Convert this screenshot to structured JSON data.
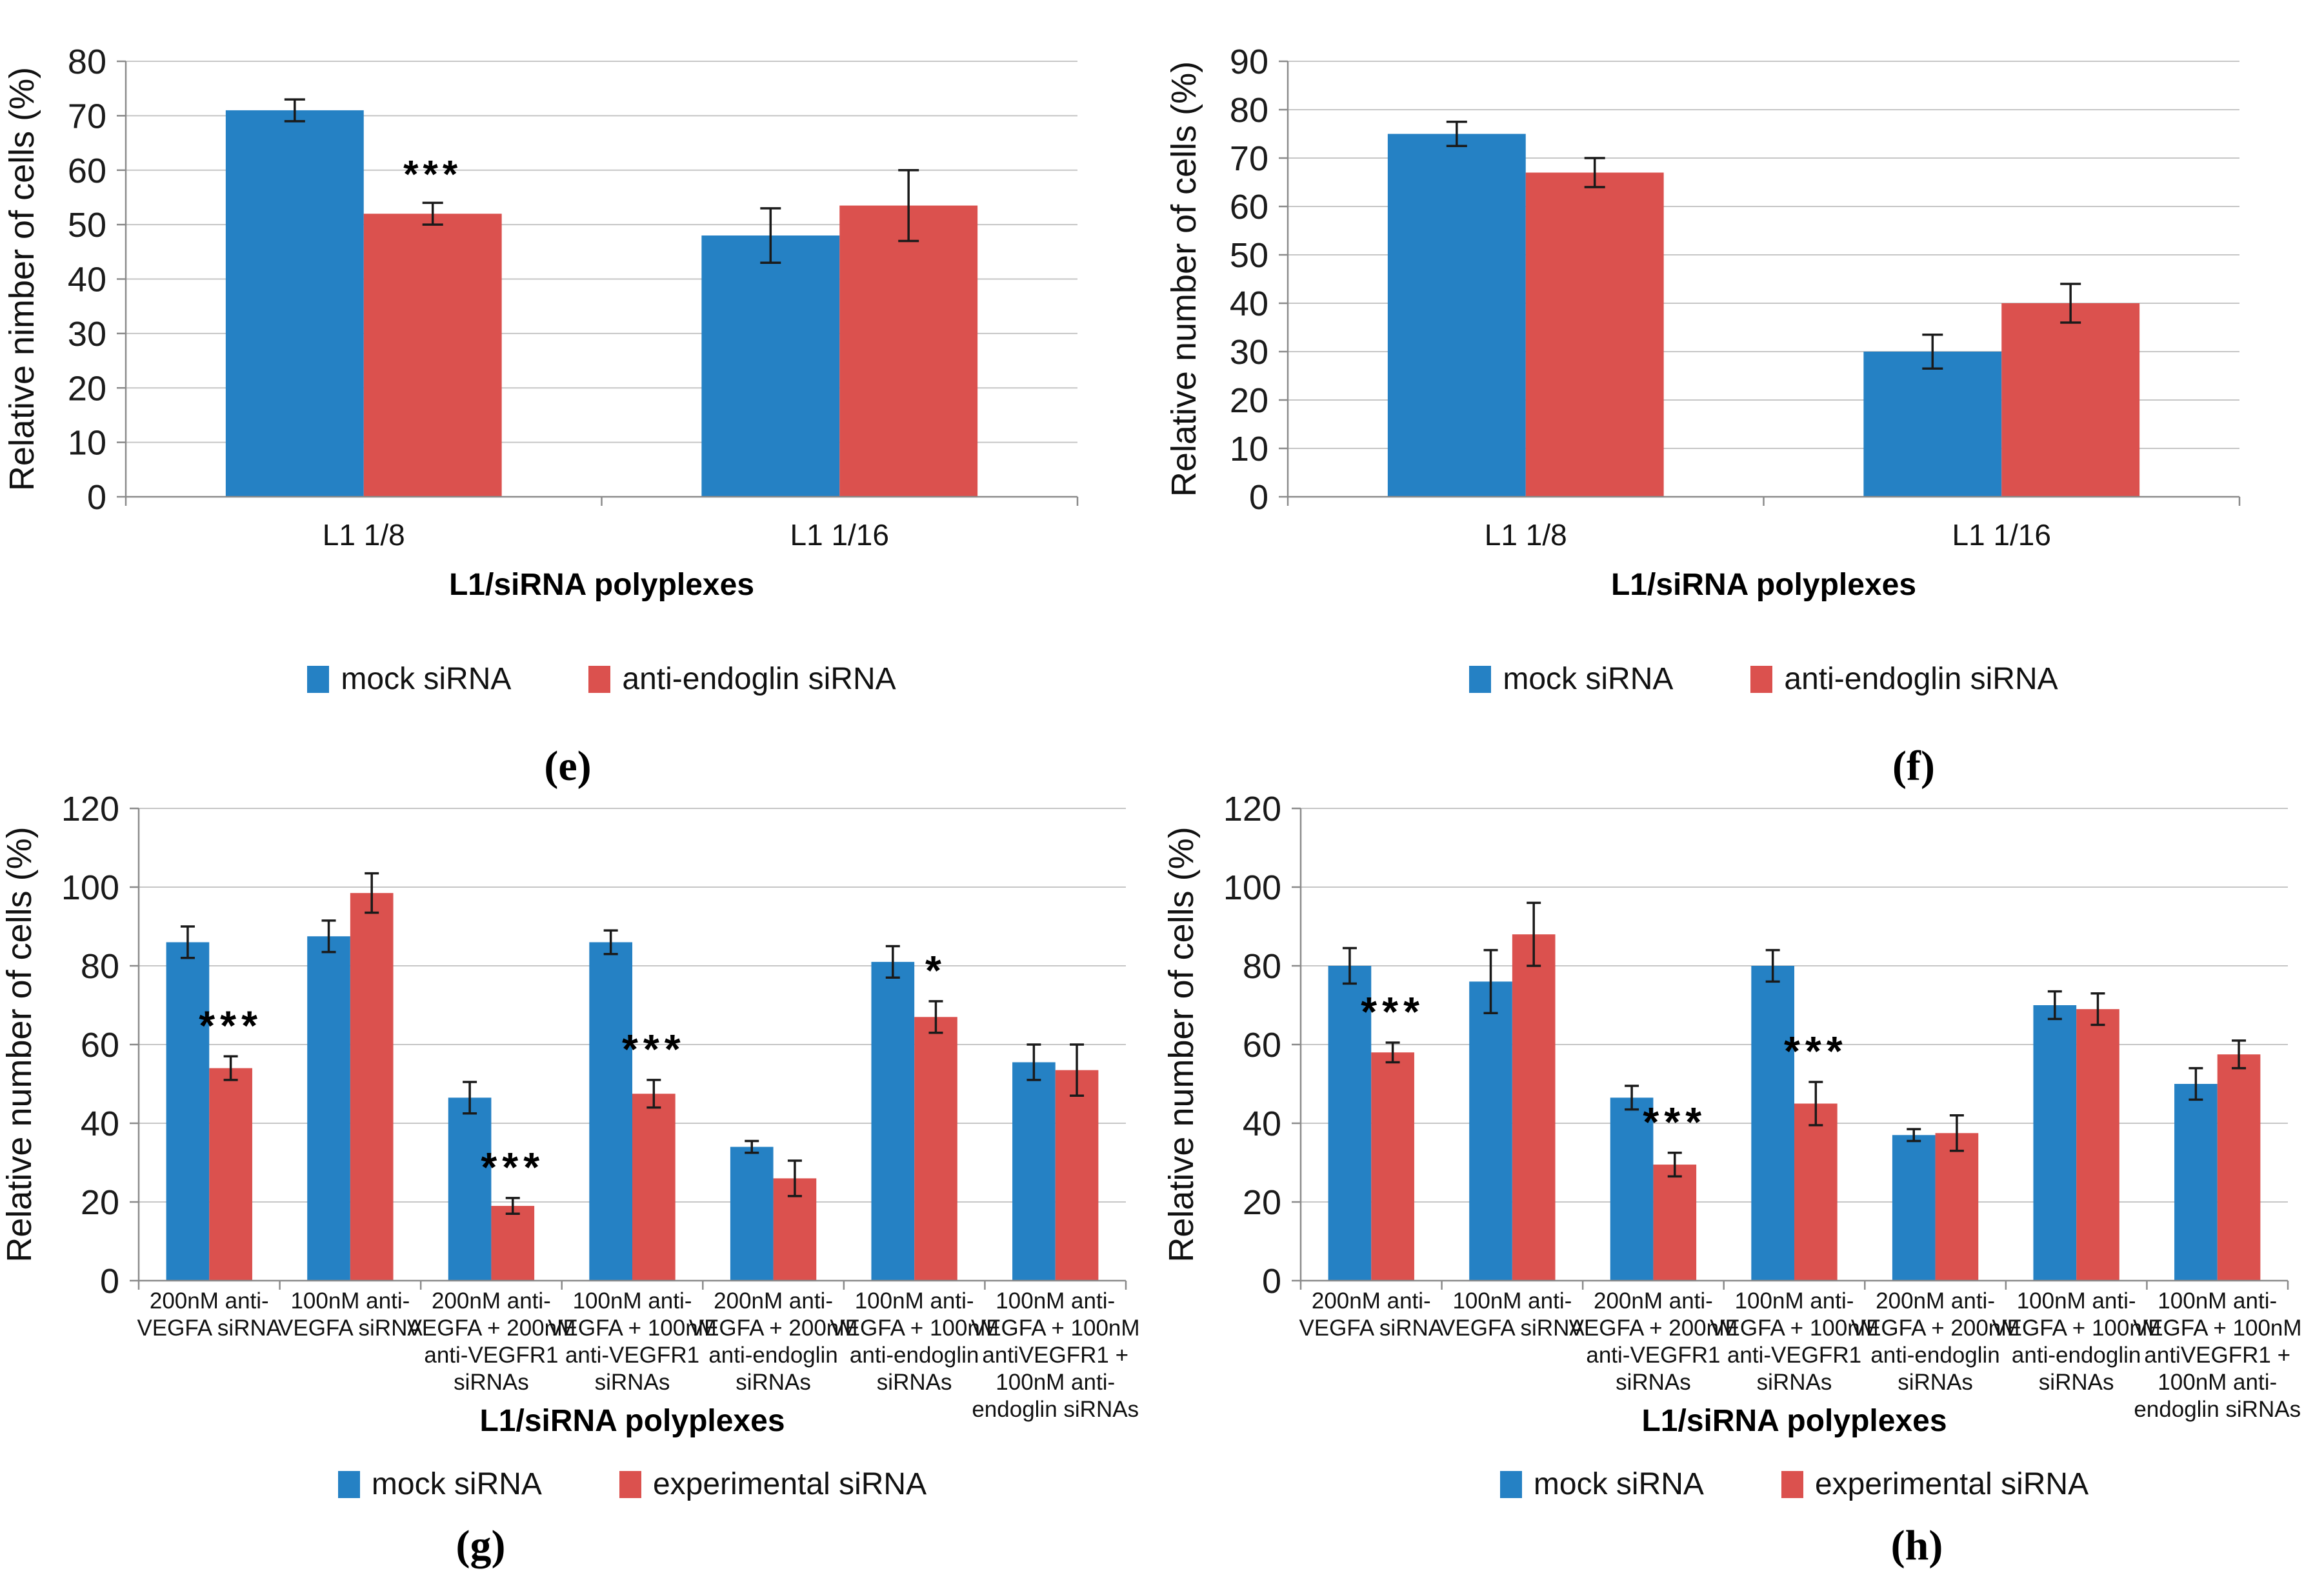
{
  "colors": {
    "mock_bar": "#2581C4",
    "experimental_bar": "#DB514E",
    "gridline": "#C6C6C6",
    "axis": "#8A8A8A",
    "error_bar": "#1A1A1A",
    "text": "#1A1A1A"
  },
  "chart_data": [
    {
      "type": "bar",
      "row": "top",
      "panel_label": "(e)",
      "title": "",
      "ylabel": "Relative nimber of cells (%)",
      "xlabel": "L1/siRNA polyplexes",
      "ylim": [
        0,
        80
      ],
      "ystep": 10,
      "grid": true,
      "legend_position": "bottom",
      "legend": [
        "mock siRNA",
        "anti-endoglin siRNA"
      ],
      "categories": [
        [
          "L1 1/8"
        ],
        [
          "L1 1/16"
        ]
      ],
      "series": [
        {
          "name": "mock siRNA",
          "color": "#2581C4",
          "values": [
            71,
            48
          ],
          "errors": [
            2,
            5
          ]
        },
        {
          "name": "anti-endoglin siRNA",
          "color": "#DB514E",
          "values": [
            52,
            53.5
          ],
          "errors": [
            2,
            6.5
          ]
        }
      ],
      "significance": [
        "***",
        ""
      ]
    },
    {
      "type": "bar",
      "row": "top",
      "panel_label": "(f)",
      "title": "",
      "ylabel": "Relative number of cells (%)",
      "xlabel": "L1/siRNA polyplexes",
      "ylim": [
        0,
        90
      ],
      "ystep": 10,
      "grid": true,
      "legend_position": "bottom",
      "legend": [
        "mock siRNA",
        "anti-endoglin siRNA"
      ],
      "categories": [
        [
          "L1 1/8"
        ],
        [
          "L1 1/16"
        ]
      ],
      "series": [
        {
          "name": "mock siRNA",
          "color": "#2581C4",
          "values": [
            75,
            30
          ],
          "errors": [
            2.5,
            3.5
          ]
        },
        {
          "name": "anti-endoglin siRNA",
          "color": "#DB514E",
          "values": [
            67,
            40
          ],
          "errors": [
            3,
            4
          ]
        }
      ],
      "significance": [
        "",
        ""
      ]
    },
    {
      "type": "bar",
      "row": "bottom",
      "panel_label": "(g)",
      "title": "",
      "ylabel": "Relative number of cells (%)",
      "xlabel": "L1/siRNA polyplexes",
      "ylim": [
        0,
        120
      ],
      "ystep": 20,
      "grid": true,
      "legend_position": "bottom",
      "legend": [
        "mock siRNA",
        "experimental siRNA"
      ],
      "categories": [
        [
          "200nM anti-",
          "VEGFA siRNA"
        ],
        [
          "100nM anti-",
          "VEGFA siRNA"
        ],
        [
          "200nM anti-",
          "VEGFA + 200nM",
          "anti-VEGFR1",
          "siRNAs"
        ],
        [
          "100nM anti-",
          "VEGFA + 100nM",
          "anti-VEGFR1",
          "siRNAs"
        ],
        [
          "200nM anti-",
          "VEGFA + 200nM",
          "anti-endoglin",
          "siRNAs"
        ],
        [
          "100nM anti-",
          "VEGFA + 100nM",
          "anti-endoglin",
          "siRNAs"
        ],
        [
          "100nM anti-",
          "VEGFA + 100nM",
          "antiVEGFR1 +",
          "100nM anti-",
          "endoglin siRNAs"
        ]
      ],
      "series": [
        {
          "name": "mock siRNA",
          "color": "#2581C4",
          "values": [
            86,
            87.5,
            46.5,
            86,
            34,
            81,
            55.5
          ],
          "errors": [
            4,
            4,
            4,
            3,
            1.5,
            4,
            4.5
          ]
        },
        {
          "name": "experimental siRNA",
          "color": "#DB514E",
          "values": [
            54,
            98.5,
            19,
            47.5,
            26,
            67,
            53.5
          ],
          "errors": [
            3,
            5,
            2,
            3.5,
            4.5,
            4,
            6.5
          ]
        }
      ],
      "significance": [
        "***",
        "",
        "***",
        "***",
        "",
        "*",
        ""
      ]
    },
    {
      "type": "bar",
      "row": "bottom",
      "panel_label": "(h)",
      "title": "",
      "ylabel": "Relative number of cells (%)",
      "xlabel": "L1/siRNA polyplexes",
      "ylim": [
        0,
        120
      ],
      "ystep": 20,
      "grid": true,
      "legend_position": "bottom",
      "legend": [
        "mock siRNA",
        "experimental siRNA"
      ],
      "categories": [
        [
          "200nM anti-",
          "VEGFA siRNA"
        ],
        [
          "100nM anti-",
          "VEGFA siRNA"
        ],
        [
          "200nM anti-",
          "VEGFA + 200nM",
          "anti-VEGFR1",
          "siRNAs"
        ],
        [
          "100nM anti-",
          "VEGFA + 100nM",
          "anti-VEGFR1",
          "siRNAs"
        ],
        [
          "200nM anti-",
          "VEGFA + 200nM",
          "anti-endoglin",
          "siRNAs"
        ],
        [
          "100nM anti-",
          "VEGFA + 100nM",
          "anti-endoglin",
          "siRNAs"
        ],
        [
          "100nM anti-",
          "VEGFA + 100nM",
          "antiVEGFR1 +",
          "100nM anti-",
          "endoglin siRNAs"
        ]
      ],
      "series": [
        {
          "name": "mock siRNA",
          "color": "#2581C4",
          "values": [
            80,
            76,
            46.5,
            80,
            37,
            70,
            50
          ],
          "errors": [
            4.5,
            8,
            3,
            4,
            1.5,
            3.5,
            4
          ]
        },
        {
          "name": "experimental siRNA",
          "color": "#DB514E",
          "values": [
            58,
            88,
            29.5,
            45,
            37.5,
            69,
            57.5
          ],
          "errors": [
            2.5,
            8,
            3,
            5.5,
            4.5,
            4,
            3.5
          ]
        }
      ],
      "significance": [
        "***",
        "",
        "***",
        "***",
        "",
        "",
        ""
      ]
    }
  ]
}
